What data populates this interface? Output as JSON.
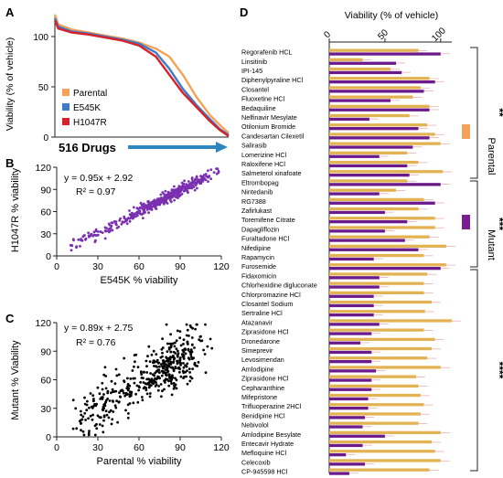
{
  "panels": {
    "a": "A",
    "b": "B",
    "c": "C",
    "d": "D"
  },
  "colors": {
    "parental": "#F4A259",
    "e545k": "#3D7BC7",
    "h1047r": "#D7222B",
    "mutant": "#7A1C94",
    "scatter_b": "#7A2FB0",
    "scatter_c": "#000000",
    "arrow": "#2E86C1",
    "bar_parental": "#E3B353",
    "bar_mutant": "#6A1A8A"
  },
  "chart_data": [
    {
      "type": "line",
      "panel": "A",
      "ylabel": "Viability (% of vehicle)",
      "xlabel": "516 Drugs",
      "ylim": [
        0,
        120
      ],
      "yticks": [
        0,
        50,
        100
      ],
      "n_drugs": 516,
      "series": [
        {
          "name": "Parental",
          "x": [
            0,
            10,
            50,
            100,
            150,
            200,
            250,
            300,
            340,
            380,
            420,
            460,
            490,
            516
          ],
          "values": [
            122,
            112,
            107,
            104,
            101,
            98,
            94,
            88,
            80,
            62,
            40,
            22,
            12,
            4
          ]
        },
        {
          "name": "E545K",
          "x": [
            0,
            10,
            50,
            100,
            150,
            200,
            250,
            300,
            340,
            380,
            420,
            460,
            490,
            516
          ],
          "values": [
            118,
            110,
            105,
            103,
            100,
            97,
            93,
            84,
            68,
            48,
            32,
            18,
            8,
            2
          ]
        },
        {
          "name": "H1047R",
          "x": [
            0,
            10,
            50,
            100,
            150,
            200,
            250,
            300,
            340,
            380,
            420,
            460,
            490,
            516
          ],
          "values": [
            116,
            108,
            104,
            102,
            99,
            96,
            91,
            80,
            62,
            44,
            30,
            16,
            7,
            1
          ]
        }
      ]
    },
    {
      "type": "scatter",
      "panel": "B",
      "xlabel": "E545K % viability",
      "ylabel": "H1047R % viability",
      "xlim": [
        0,
        120
      ],
      "ylim": [
        0,
        120
      ],
      "xticks": [
        0,
        30,
        60,
        90,
        120
      ],
      "yticks": [
        0,
        30,
        60,
        90,
        120
      ],
      "equation": "y = 0.95x + 2.92",
      "r2": "R² = 0.97",
      "fit": {
        "slope": 0.95,
        "intercept": 2.92
      }
    },
    {
      "type": "scatter",
      "panel": "C",
      "xlabel": "Parental % viability",
      "ylabel": "Mutant % Viability",
      "xlim": [
        0,
        120
      ],
      "ylim": [
        0,
        120
      ],
      "xticks": [
        0,
        30,
        60,
        90,
        120
      ],
      "yticks": [
        0,
        30,
        60,
        90,
        120
      ],
      "equation": "y = 0.89x + 2.75",
      "r2": "R² = 0.76",
      "fit": {
        "slope": 0.89,
        "intercept": 2.75
      }
    },
    {
      "type": "bar",
      "panel": "D",
      "title": "Viability (% of vehicle)",
      "xlim": [
        0,
        110
      ],
      "xticks": [
        0,
        50,
        100
      ],
      "legend": [
        "Parental",
        "Mutant"
      ],
      "significance": [
        "**",
        "***",
        "****"
      ],
      "categories": [
        "Regorafenib HCL",
        "Linsitinib",
        "IPI-145",
        "Diphenylpyraline HCl",
        "Closantel",
        "Fluoxetine HCl",
        "Bedaquiline",
        "Nelfinavir Mesylate",
        "Otilonium Bromide",
        "Candesartan Cilexetil",
        "Salirasib",
        "Lomerizine HCl",
        "Raloxifene HCl",
        "Salmeterol xinafoate",
        "Eltrombopag",
        "Nintedanib",
        "RG7388",
        "Zafirlukast",
        "Toremifene Citrate",
        "Dapagliflozin",
        "Furaltadone HCl",
        "Nifedipine",
        "Rapamycin",
        "Furosemide",
        "Fidaxomicin",
        "Chlorhexidine digluconate",
        "Chlorpromazine HCl",
        "Closantel Sodium",
        "Sertraline HCl",
        "Atazanavir",
        "Ziprasidone HCl",
        "Dronedarone",
        "Simeprevir",
        "Levosimendan",
        "Amlodipine",
        "Ziprasidone HCl",
        "Cepharanthine",
        "Mifepristone",
        "Trifluoperazine 2HCl",
        "Benidipine HCl",
        "Nebivolol",
        "Amlodipine Besylate",
        "Entecavir Hydrate",
        "Mefloquine HCl",
        "Celecoxib",
        "CP-945598 HCl"
      ],
      "series": [
        {
          "name": "Parental",
          "values": [
            80,
            30,
            55,
            90,
            82,
            75,
            90,
            72,
            88,
            95,
            100,
            70,
            80,
            102,
            70,
            60,
            85,
            80,
            95,
            95,
            90,
            105,
            85,
            105,
            88,
            85,
            85,
            92,
            86,
            110,
            85,
            95,
            92,
            88,
            100,
            78,
            80,
            82,
            85,
            82,
            80,
            100,
            92,
            95,
            100,
            90
          ]
        },
        {
          "name": "Mutant",
          "values": [
            100,
            60,
            65,
            95,
            85,
            55,
            90,
            36,
            80,
            90,
            75,
            45,
            70,
            72,
            100,
            45,
            95,
            50,
            70,
            50,
            68,
            80,
            40,
            100,
            45,
            45,
            40,
            40,
            40,
            45,
            38,
            28,
            38,
            38,
            42,
            38,
            38,
            35,
            35,
            32,
            30,
            50,
            30,
            15,
            32,
            18
          ]
        }
      ]
    }
  ]
}
